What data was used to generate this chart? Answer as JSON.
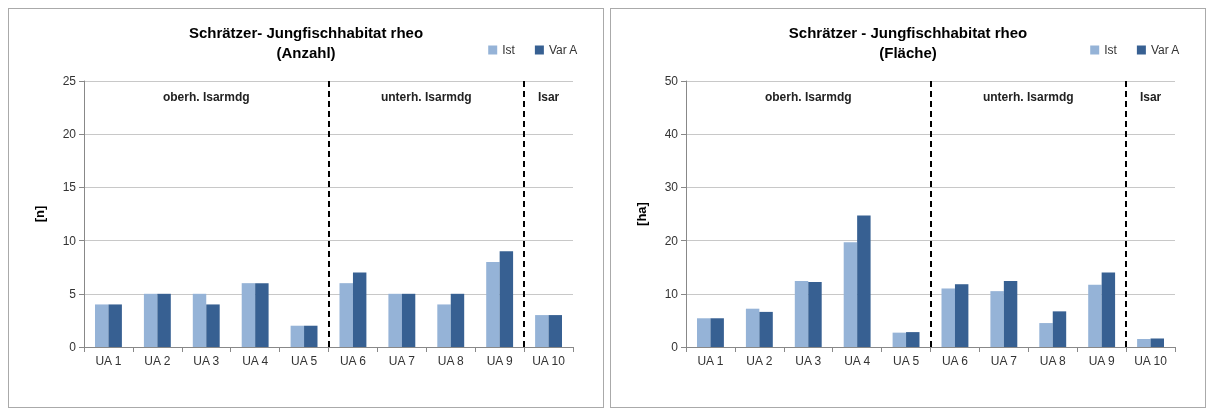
{
  "chart_data": [
    {
      "type": "bar",
      "title": "Schrätzer- Jungfischhabitat rheo\n(Anzahl)",
      "ylabel": "[n]",
      "categories": [
        "UA 1",
        "UA 2",
        "UA 3",
        "UA 4",
        "UA 5",
        "UA 6",
        "UA 7",
        "UA 8",
        "UA 9",
        "UA 10"
      ],
      "series": [
        {
          "name": "Ist",
          "color": "#95b3d7",
          "values": [
            4,
            5,
            5,
            6,
            2,
            6,
            5,
            4,
            8,
            3
          ]
        },
        {
          "name": "Var A",
          "color": "#376092",
          "values": [
            4,
            5,
            4,
            6,
            2,
            7,
            5,
            5,
            9,
            3
          ]
        }
      ],
      "ylim": [
        0,
        25
      ],
      "yticks": [
        0,
        5,
        10,
        15,
        20,
        25
      ],
      "grid": "y",
      "legend": "top right",
      "annotations": [
        "oberh. Isarmdg",
        "unterh. Isarmdg",
        "Isar"
      ]
    },
    {
      "type": "bar",
      "title": "Schrätzer - Jungfischhabitat rheo\n(Fläche)",
      "ylabel": "[ha]",
      "categories": [
        "UA 1",
        "UA 2",
        "UA 3",
        "UA 4",
        "UA 5",
        "UA 6",
        "UA 7",
        "UA 8",
        "UA 9",
        "UA 10"
      ],
      "series": [
        {
          "name": "Ist",
          "color": "#95b3d7",
          "values": [
            5.4,
            7.2,
            12.4,
            19.7,
            2.7,
            11.0,
            10.5,
            4.5,
            11.7,
            1.5
          ]
        },
        {
          "name": "Var A",
          "color": "#376092",
          "values": [
            5.4,
            6.6,
            12.2,
            24.7,
            2.8,
            11.8,
            12.4,
            6.7,
            14.0,
            1.6
          ]
        }
      ],
      "ylim": [
        0,
        50
      ],
      "yticks": [
        0,
        10,
        20,
        30,
        40,
        50
      ],
      "grid": "y",
      "legend": "top right",
      "annotations": [
        "oberh. Isarmdg",
        "unterh. Isarmdg",
        "Isar"
      ]
    }
  ]
}
